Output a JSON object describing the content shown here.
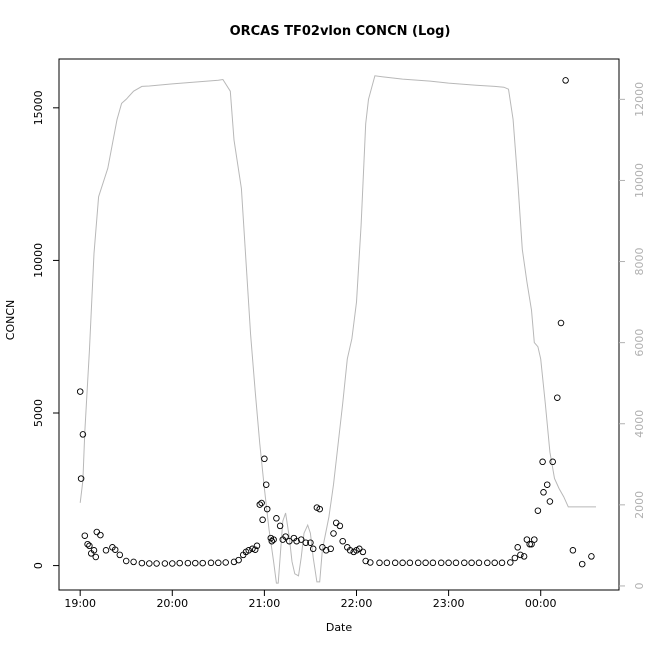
{
  "chart_data": {
    "type": "scatter",
    "title": "ORCAS TF02vlon CONCN (Log)",
    "xlabel": "Date",
    "ylabel": "CONCN",
    "x_range_hours": [
      18.77,
      24.85
    ],
    "ylim_left": [
      -800,
      16600
    ],
    "ylim_right": [
      -100,
      12995
    ],
    "x_ticks": [
      {
        "label": "19:00",
        "hour": 19
      },
      {
        "label": "20:00",
        "hour": 20
      },
      {
        "label": "21:00",
        "hour": 21
      },
      {
        "label": "22:00",
        "hour": 22
      },
      {
        "label": "23:00",
        "hour": 23
      },
      {
        "label": "00:00",
        "hour": 24
      }
    ],
    "y_ticks_left": [
      0,
      5000,
      10000,
      15000
    ],
    "y_ticks_right": [
      0,
      2000,
      4000,
      6000,
      8000,
      10000,
      12000
    ],
    "grid": false,
    "series": [
      {
        "style": "points",
        "axis": "left",
        "color": "#000000",
        "points": [
          [
            19.0,
            5700
          ],
          [
            19.01,
            2850
          ],
          [
            19.03,
            4300
          ],
          [
            19.05,
            980
          ],
          [
            19.08,
            700
          ],
          [
            19.1,
            650
          ],
          [
            19.12,
            400
          ],
          [
            19.15,
            500
          ],
          [
            19.17,
            280
          ],
          [
            19.18,
            1100
          ],
          [
            19.22,
            1000
          ],
          [
            19.28,
            500
          ],
          [
            19.35,
            600
          ],
          [
            19.38,
            520
          ],
          [
            19.43,
            350
          ],
          [
            19.5,
            150
          ],
          [
            19.58,
            120
          ],
          [
            19.67,
            80
          ],
          [
            19.75,
            70
          ],
          [
            19.83,
            70
          ],
          [
            19.92,
            70
          ],
          [
            20.0,
            70
          ],
          [
            20.08,
            80
          ],
          [
            20.17,
            80
          ],
          [
            20.25,
            80
          ],
          [
            20.33,
            80
          ],
          [
            20.42,
            90
          ],
          [
            20.5,
            90
          ],
          [
            20.58,
            100
          ],
          [
            20.67,
            120
          ],
          [
            20.72,
            180
          ],
          [
            20.77,
            350
          ],
          [
            20.8,
            450
          ],
          [
            20.83,
            500
          ],
          [
            20.87,
            550
          ],
          [
            20.9,
            520
          ],
          [
            20.92,
            650
          ],
          [
            20.95,
            2000
          ],
          [
            20.97,
            2050
          ],
          [
            20.98,
            1500
          ],
          [
            21.0,
            3500
          ],
          [
            21.02,
            2650
          ],
          [
            21.03,
            1850
          ],
          [
            21.07,
            900
          ],
          [
            21.08,
            800
          ],
          [
            21.1,
            850
          ],
          [
            21.13,
            1550
          ],
          [
            21.17,
            1300
          ],
          [
            21.2,
            850
          ],
          [
            21.23,
            950
          ],
          [
            21.27,
            800
          ],
          [
            21.32,
            900
          ],
          [
            21.35,
            800
          ],
          [
            21.4,
            850
          ],
          [
            21.45,
            750
          ],
          [
            21.5,
            750
          ],
          [
            21.53,
            550
          ],
          [
            21.57,
            1900
          ],
          [
            21.6,
            1850
          ],
          [
            21.63,
            600
          ],
          [
            21.67,
            500
          ],
          [
            21.72,
            550
          ],
          [
            21.75,
            1050
          ],
          [
            21.78,
            1400
          ],
          [
            21.82,
            1300
          ],
          [
            21.85,
            800
          ],
          [
            21.9,
            600
          ],
          [
            21.93,
            500
          ],
          [
            21.97,
            450
          ],
          [
            22.0,
            500
          ],
          [
            22.03,
            550
          ],
          [
            22.07,
            450
          ],
          [
            22.1,
            150
          ],
          [
            22.15,
            100
          ],
          [
            22.25,
            90
          ],
          [
            22.33,
            90
          ],
          [
            22.42,
            90
          ],
          [
            22.5,
            90
          ],
          [
            22.58,
            90
          ],
          [
            22.67,
            90
          ],
          [
            22.75,
            90
          ],
          [
            22.83,
            90
          ],
          [
            22.92,
            90
          ],
          [
            23.0,
            90
          ],
          [
            23.08,
            90
          ],
          [
            23.17,
            90
          ],
          [
            23.25,
            90
          ],
          [
            23.33,
            90
          ],
          [
            23.42,
            90
          ],
          [
            23.5,
            90
          ],
          [
            23.58,
            90
          ],
          [
            23.67,
            100
          ],
          [
            23.72,
            250
          ],
          [
            23.75,
            600
          ],
          [
            23.78,
            350
          ],
          [
            23.82,
            300
          ],
          [
            23.85,
            850
          ],
          [
            23.88,
            700
          ],
          [
            23.9,
            700
          ],
          [
            23.93,
            850
          ],
          [
            23.97,
            1800
          ],
          [
            24.02,
            3400
          ],
          [
            24.03,
            2400
          ],
          [
            24.07,
            2650
          ],
          [
            24.1,
            2100
          ],
          [
            24.13,
            3400
          ],
          [
            24.18,
            5500
          ],
          [
            24.22,
            7950
          ],
          [
            24.27,
            15900
          ],
          [
            24.35,
            500
          ],
          [
            24.45,
            50
          ],
          [
            24.55,
            300
          ]
        ]
      },
      {
        "style": "line",
        "axis": "right",
        "color": "#b8b8b8",
        "points": [
          [
            19.0,
            2050
          ],
          [
            19.03,
            2600
          ],
          [
            19.05,
            3800
          ],
          [
            19.1,
            5800
          ],
          [
            19.15,
            8200
          ],
          [
            19.2,
            9600
          ],
          [
            19.3,
            10300
          ],
          [
            19.4,
            11500
          ],
          [
            19.45,
            11900
          ],
          [
            19.5,
            12000
          ],
          [
            19.58,
            12200
          ],
          [
            19.67,
            12320
          ],
          [
            19.75,
            12330
          ],
          [
            20.0,
            12380
          ],
          [
            20.5,
            12470
          ],
          [
            20.55,
            12490
          ],
          [
            20.63,
            12200
          ],
          [
            20.67,
            11000
          ],
          [
            20.75,
            9800
          ],
          [
            20.8,
            8000
          ],
          [
            20.85,
            6200
          ],
          [
            20.9,
            4800
          ],
          [
            20.95,
            3500
          ],
          [
            21.0,
            2400
          ],
          [
            21.05,
            1400
          ],
          [
            21.1,
            600
          ],
          [
            21.13,
            70
          ],
          [
            21.15,
            70
          ],
          [
            21.17,
            700
          ],
          [
            21.2,
            1600
          ],
          [
            21.23,
            1800
          ],
          [
            21.27,
            1200
          ],
          [
            21.3,
            600
          ],
          [
            21.33,
            300
          ],
          [
            21.37,
            250
          ],
          [
            21.4,
            700
          ],
          [
            21.43,
            1300
          ],
          [
            21.47,
            1500
          ],
          [
            21.5,
            1300
          ],
          [
            21.53,
            700
          ],
          [
            21.57,
            100
          ],
          [
            21.6,
            100
          ],
          [
            21.63,
            900
          ],
          [
            21.7,
            1700
          ],
          [
            21.75,
            2500
          ],
          [
            21.8,
            3500
          ],
          [
            21.85,
            4500
          ],
          [
            21.9,
            5600
          ],
          [
            21.95,
            6100
          ],
          [
            22.0,
            7000
          ],
          [
            22.05,
            8900
          ],
          [
            22.1,
            11400
          ],
          [
            22.13,
            12000
          ],
          [
            22.2,
            12580
          ],
          [
            22.3,
            12550
          ],
          [
            22.5,
            12500
          ],
          [
            22.8,
            12450
          ],
          [
            23.0,
            12400
          ],
          [
            23.3,
            12350
          ],
          [
            23.5,
            12320
          ],
          [
            23.6,
            12300
          ],
          [
            23.65,
            12250
          ],
          [
            23.7,
            11500
          ],
          [
            23.75,
            10000
          ],
          [
            23.8,
            8300
          ],
          [
            23.85,
            7500
          ],
          [
            23.9,
            6800
          ],
          [
            23.93,
            6000
          ],
          [
            23.97,
            5900
          ],
          [
            24.0,
            5600
          ],
          [
            24.05,
            4500
          ],
          [
            24.1,
            3300
          ],
          [
            24.15,
            2650
          ],
          [
            24.2,
            2400
          ],
          [
            24.25,
            2200
          ],
          [
            24.3,
            1950
          ],
          [
            24.4,
            1950
          ],
          [
            24.5,
            1950
          ],
          [
            24.6,
            1950
          ]
        ]
      }
    ]
  }
}
